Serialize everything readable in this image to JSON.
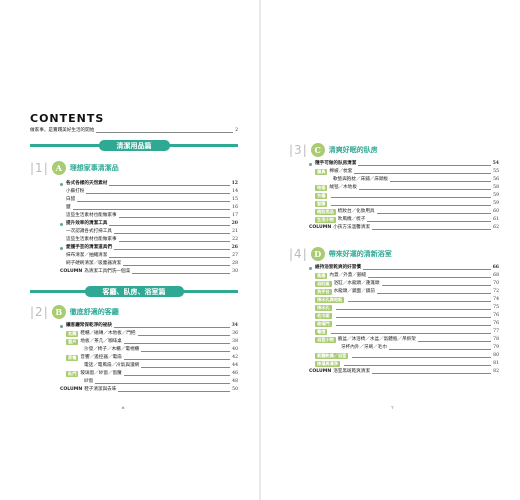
{
  "left": {
    "contents_title": "CONTENTS",
    "intro": {
      "title": "做家事，是實踐美好生活的開始",
      "page": "2"
    },
    "banner1": "清潔用品篇",
    "chapter1": {
      "num": "1",
      "icon_char": "A",
      "title": "理想家事清潔品",
      "sections": [
        {
          "title": "各式各樣的天然素材",
          "page": "12",
          "items": [
            {
              "t": "小蘇打粉",
              "p": "14"
            },
            {
              "t": "白醋",
              "p": "15"
            },
            {
              "t": "鹽",
              "p": "16"
            },
            {
              "t": "這些生活素材也能做家事",
              "p": "17"
            }
          ]
        },
        {
          "title": "提升效率的清潔工具",
          "page": "20",
          "items": [
            {
              "t": "一次認識各式打掃工具",
              "p": "21"
            },
            {
              "t": "這些生活素材也能做家事",
              "p": "22"
            }
          ]
        },
        {
          "title": "愛護手芸的清潔道具們",
          "page": "26",
          "items": [
            {
              "t": "抹布清潔／抽繩清潔",
              "p": "27"
            },
            {
              "t": "刷子硬刷清潔／吸塵器清潔",
              "p": "28"
            }
          ]
        }
      ],
      "column": {
        "label": "COLUMN",
        "t": "為清潔工具們洗一個澡",
        "p": "30"
      }
    },
    "banner2": "客廳、臥房、浴室篇",
    "chapter2": {
      "num": "2",
      "icon_char": "B",
      "title": "徹底舒適的客廳",
      "section": {
        "title": "讓客廳常保乾淨的祕訣",
        "page": "34"
      },
      "rows": [
        {
          "tag": "玄關",
          "t": "鞋櫃／磁磚／木地板／門把",
          "p": "36"
        },
        {
          "tag": "窗戶",
          "t": "地板／茶几／咖啡桌",
          "p": "38"
        },
        {
          "tag": "",
          "t": "沙發／椅子／木櫃／電視櫃",
          "p": "40"
        },
        {
          "tag": "家電",
          "t": "音響／遙控器／電扇",
          "p": "42"
        },
        {
          "tag": "",
          "t": "電話／電風扇／冷氣與濾網",
          "p": "44"
        },
        {
          "tag": "臥門",
          "t": "玻璃窗／紗窗／窗簾",
          "p": "46"
        },
        {
          "tag": "",
          "t": "紗窗",
          "p": "48"
        }
      ],
      "column": {
        "label": "COLUMN",
        "t": "鞋子清潔與去味",
        "p": "50"
      }
    },
    "folio": "6"
  },
  "right": {
    "chapter3": {
      "num": "3",
      "icon_char": "C",
      "title": "清爽好眠的臥房",
      "section": {
        "title": "隨手可做的臥房清潔",
        "page": "54"
      },
      "rows": [
        {
          "tag": "寢具",
          "t": "棉被／枕套",
          "p": "55"
        },
        {
          "tag": "",
          "t": "軟墊與抱枕／床鋪／床頭板",
          "p": "56"
        },
        {
          "tag": "地毯",
          "t": "絨毯／木地板",
          "p": "58"
        },
        {
          "tag": "衣櫃",
          "t": "",
          "p": "59"
        },
        {
          "tag": "窗簾",
          "t": "",
          "p": "59"
        },
        {
          "tag": "梳妝用品",
          "t": "梳妝台／化妝用具",
          "p": "60"
        },
        {
          "tag": "生活小物",
          "t": "吹風機／梳子",
          "p": "61"
        }
      ],
      "column": {
        "label": "COLUMN",
        "t": "小孩方法溫馨清潔",
        "p": "62"
      }
    },
    "chapter4": {
      "num": "4",
      "icon_char": "D",
      "title": "帶來好運的清新浴室",
      "section": {
        "title": "維持浴室乾爽的好習慣",
        "page": "66"
      },
      "rows": [
        {
          "tag": "馬桶",
          "t": "內蓋／外蓋／腳縫",
          "p": "68"
        },
        {
          "tag": "浴缸區",
          "t": "浴缸／水龍頭／蓮蓬頭",
          "p": "70"
        },
        {
          "tag": "洗手台",
          "t": "水龍頭／鏡面／鏡前",
          "p": "72"
        },
        {
          "tag": "排水孔與地板",
          "t": "",
          "p": "74"
        },
        {
          "tag": "排水孔",
          "t": "",
          "p": "75"
        },
        {
          "tag": "毛巾架",
          "t": "",
          "p": "76"
        },
        {
          "tag": "玻璃門",
          "t": "",
          "p": "76"
        },
        {
          "tag": "電燈",
          "t": "",
          "p": "77"
        },
        {
          "tag": "浴室小物",
          "t": "臉盆／沐浴椅／水盆／氣體瓶／吊掛架",
          "p": "78"
        },
        {
          "tag": "",
          "t": "牙杯內外／牙刷／毛巾",
          "p": "79"
        },
        {
          "tag": "氣體乾燥／浴室",
          "t": "",
          "p": "80"
        },
        {
          "tag": "除濕與清淨",
          "t": "",
          "p": "81"
        }
      ],
      "column": {
        "label": "COLUMN",
        "t": "浴室黑斑乾爽清潔",
        "p": "82"
      }
    },
    "folio": "7"
  }
}
